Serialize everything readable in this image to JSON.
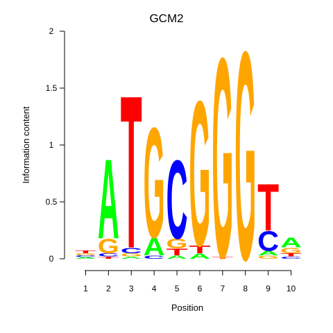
{
  "chart_data": {
    "type": "sequence-logo",
    "title": "GCM2",
    "xlabel": "Position",
    "ylabel": "Information content",
    "ylim": [
      0,
      2
    ],
    "y_ticks": [
      "0",
      "0.5",
      "1",
      "1.5",
      "2"
    ],
    "positions": [
      "1",
      "2",
      "3",
      "4",
      "5",
      "6",
      "7",
      "8",
      "9",
      "10"
    ],
    "colors": {
      "A": "#00ff00",
      "C": "#0000ff",
      "G": "#ffa500",
      "T": "#ff0000"
    },
    "stacks": [
      [
        {
          "letter": "A",
          "height": 0.015
        },
        {
          "letter": "C",
          "height": 0.015
        },
        {
          "letter": "G",
          "height": 0.02
        },
        {
          "letter": "T",
          "height": 0.025
        }
      ],
      [
        {
          "letter": "T",
          "height": 0.02
        },
        {
          "letter": "C",
          "height": 0.03
        },
        {
          "letter": "G",
          "height": 0.13
        },
        {
          "letter": "A",
          "height": 0.73
        }
      ],
      [
        {
          "letter": "A",
          "height": 0.02
        },
        {
          "letter": "G",
          "height": 0.03
        },
        {
          "letter": "C",
          "height": 0.05
        },
        {
          "letter": "T",
          "height": 1.4
        }
      ],
      [
        {
          "letter": "C",
          "height": 0.03
        },
        {
          "letter": "A",
          "height": 0.16
        },
        {
          "letter": "G",
          "height": 1.01
        }
      ],
      [
        {
          "letter": "A",
          "height": 0.03
        },
        {
          "letter": "T",
          "height": 0.06
        },
        {
          "letter": "G",
          "height": 0.09
        },
        {
          "letter": "C",
          "height": 0.72
        }
      ],
      [
        {
          "letter": "A",
          "height": 0.05
        },
        {
          "letter": "T",
          "height": 0.07
        },
        {
          "letter": "G",
          "height": 1.33
        }
      ],
      [
        {
          "letter": "T",
          "height": 0.02
        },
        {
          "letter": "G",
          "height": 1.83
        }
      ],
      [
        {
          "letter": "G",
          "height": 1.91
        }
      ],
      [
        {
          "letter": "G",
          "height": 0.03
        },
        {
          "letter": "A",
          "height": 0.04
        },
        {
          "letter": "C",
          "height": 0.18
        },
        {
          "letter": "T",
          "height": 0.43
        }
      ],
      [
        {
          "letter": "C",
          "height": 0.02
        },
        {
          "letter": "T",
          "height": 0.03
        },
        {
          "letter": "G",
          "height": 0.05
        },
        {
          "letter": "A",
          "height": 0.09
        }
      ]
    ]
  }
}
